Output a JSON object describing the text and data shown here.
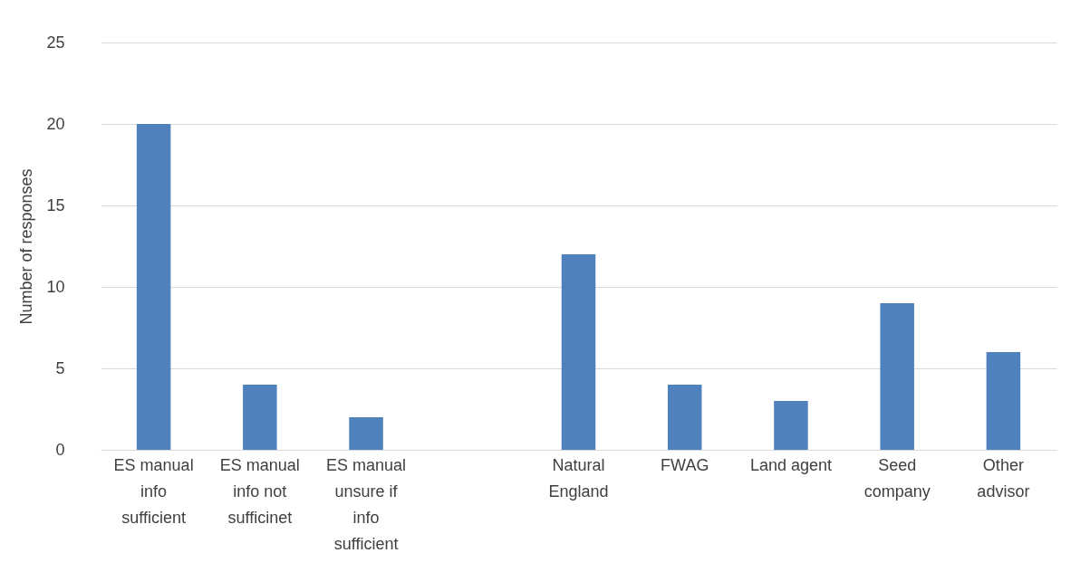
{
  "chart_data": {
    "type": "bar",
    "ylabel": "Number of responses",
    "categories": [
      "ES manual info sufficient",
      "ES manual info not sufficinet",
      "ES manual unsure if info sufficient",
      null,
      "Natural England",
      "FWAG",
      "Land agent",
      "Seed company",
      "Other advisor"
    ],
    "values": [
      20,
      4,
      2,
      null,
      12,
      4,
      3,
      9,
      6
    ],
    "color": "#4f81bd",
    "ylim": [
      0,
      25
    ],
    "yticks": [
      0,
      5,
      10,
      15,
      20,
      25
    ],
    "grid": "y"
  }
}
